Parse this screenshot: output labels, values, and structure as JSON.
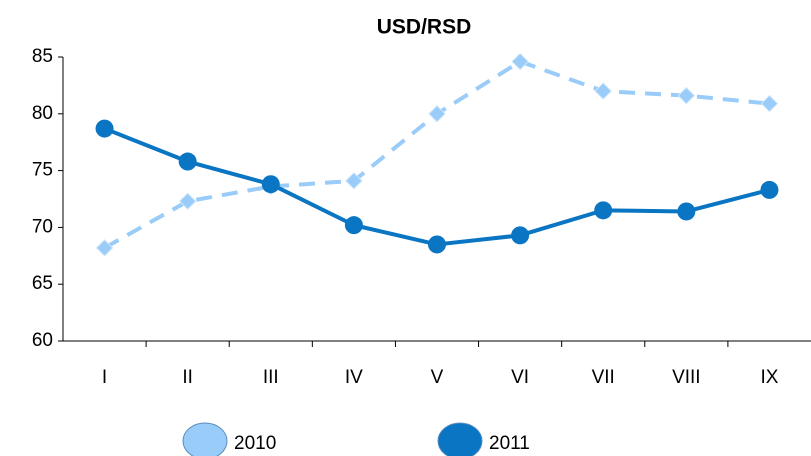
{
  "chart_data": {
    "type": "line",
    "title": "USD/RSD",
    "categories": [
      "I",
      "II",
      "III",
      "IV",
      "V",
      "VI",
      "VII",
      "VIII",
      "IX"
    ],
    "series": [
      {
        "name": "2010",
        "color": "#99ccf8",
        "dash": true,
        "marker": "diamond",
        "values": [
          68.2,
          72.3,
          73.6,
          74.1,
          80.0,
          84.6,
          82.0,
          81.6,
          80.9
        ]
      },
      {
        "name": "2011",
        "color": "#0a75c2",
        "dash": false,
        "marker": "circle",
        "values": [
          78.7,
          75.8,
          73.8,
          70.2,
          68.5,
          69.3,
          71.5,
          71.4,
          73.3
        ]
      }
    ],
    "ylim": [
      60,
      85
    ],
    "yticks": [
      60,
      65,
      70,
      75,
      80,
      85
    ],
    "grid": false
  }
}
